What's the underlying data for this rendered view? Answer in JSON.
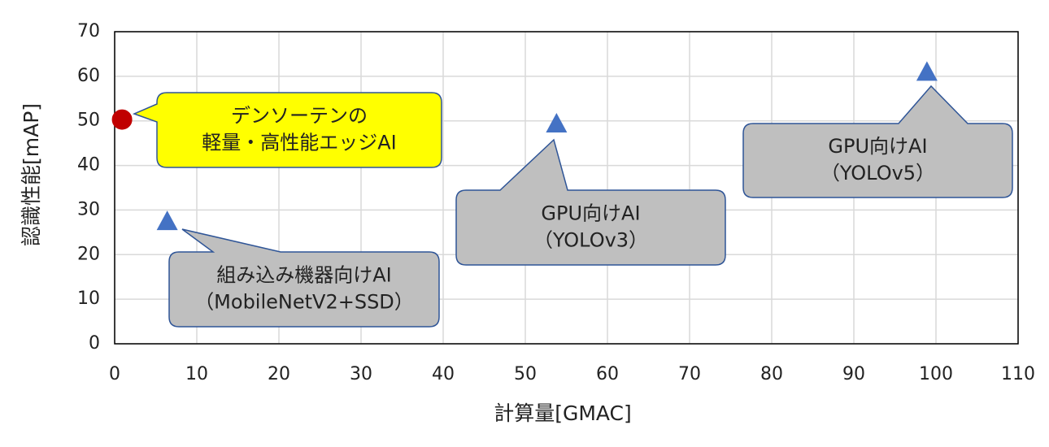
{
  "chart_data": {
    "type": "scatter",
    "xlabel": "計算量[GMAC]",
    "ylabel": "認識性能[mAP]",
    "xlim": [
      0,
      110
    ],
    "xticks": [
      0,
      10,
      20,
      30,
      40,
      50,
      60,
      70,
      80,
      90,
      100,
      110
    ],
    "ylim": [
      0,
      70
    ],
    "yticks": [
      0,
      10,
      20,
      30,
      40,
      50,
      60,
      70
    ],
    "grid": true,
    "series": [
      {
        "color": "#c00000",
        "marker": "circle",
        "x": [
          0.9
        ],
        "values": [
          50.3
        ]
      },
      {
        "color": "#4472c4",
        "marker": "triangle",
        "x": [
          6.4,
          53.8,
          98.9
        ],
        "values": [
          27.5,
          49.4,
          61
        ]
      }
    ],
    "annotations": [
      {
        "lines": [
          "デンソーテンの",
          "軽量・高性能エッジAI"
        ],
        "fill": "#ffff00"
      },
      {
        "lines": [
          "組み込み機器向けAI",
          "（MobileNetV2+SSD）"
        ],
        "fill": "#bfbfbf"
      },
      {
        "lines": [
          "GPU向けAI",
          "（YOLOv3）"
        ],
        "fill": "#bfbfbf"
      },
      {
        "lines": [
          "GPU向けAI",
          "（YOLOv5）"
        ],
        "fill": "#bfbfbf"
      }
    ]
  }
}
